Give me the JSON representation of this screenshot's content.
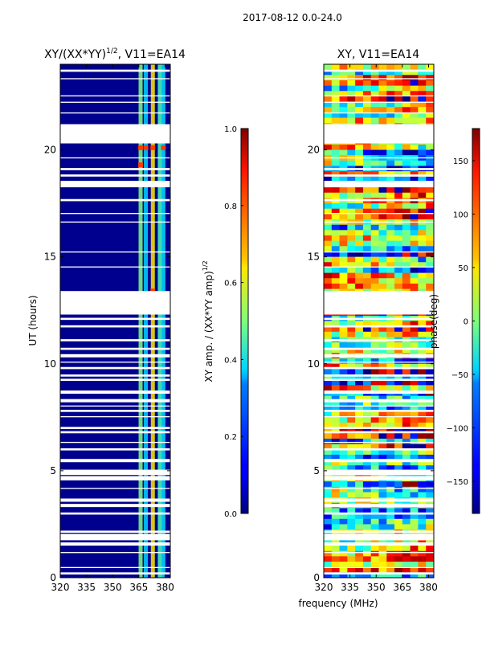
{
  "chart_data": {
    "suptitle": "2017-08-12 0.0-24.0",
    "xlabel": "frequency (MHz)",
    "panels": [
      {
        "type": "heatmap",
        "title_base": "XY/(XX*YY)",
        "title_sup": "1/2",
        "title_suffix": ", V11=EA14",
        "ylabel": "UT (hours)",
        "xlim": [
          320,
          383
        ],
        "ylim": [
          0,
          24
        ],
        "xticks": [
          320,
          335,
          350,
          365,
          380
        ],
        "yticks": [
          0,
          5,
          10,
          15,
          20
        ],
        "colorbar": {
          "label_base": "XY amp. / (XX*YY amp)",
          "label_sup": "1/2",
          "range": [
            0.0,
            1.0
          ],
          "ticks": [
            0.0,
            0.2,
            0.4,
            0.6,
            0.8,
            1.0
          ],
          "tick_labels": [
            "0.0",
            "0.2",
            "0.4",
            "0.6",
            "0.8",
            "1.0"
          ]
        }
      },
      {
        "type": "heatmap",
        "title": "XY, V11=EA14",
        "xlim": [
          320,
          383
        ],
        "ylim": [
          0,
          24
        ],
        "xticks": [
          320,
          335,
          350,
          365,
          380
        ],
        "yticks": [
          0,
          5,
          10,
          15,
          20
        ],
        "colorbar": {
          "label": "phase(deg)",
          "range": [
            -180,
            180
          ],
          "ticks": [
            -150,
            -100,
            -50,
            0,
            50,
            100,
            150
          ],
          "tick_labels": [
            "−150",
            "−100",
            "−50",
            "0",
            "50",
            "100",
            "150"
          ]
        }
      }
    ],
    "data_gaps_ut": [
      [
        0.15,
        0.25
      ],
      [
        0.45,
        0.5
      ],
      [
        1.15,
        1.2
      ],
      [
        1.5,
        1.65
      ],
      [
        1.75,
        2.05
      ],
      [
        2.1,
        2.2
      ],
      [
        2.95,
        3.05
      ],
      [
        3.3,
        3.45
      ],
      [
        3.55,
        3.7
      ],
      [
        4.15,
        4.2
      ],
      [
        4.55,
        4.75
      ],
      [
        4.8,
        5.05
      ],
      [
        5.4,
        5.55
      ],
      [
        5.95,
        6.05
      ],
      [
        6.3,
        6.35
      ],
      [
        6.75,
        6.85
      ],
      [
        6.95,
        7.05
      ],
      [
        7.5,
        7.55
      ],
      [
        7.75,
        7.85
      ],
      [
        8.0,
        8.05
      ],
      [
        8.2,
        8.35
      ],
      [
        8.6,
        8.75
      ],
      [
        9.2,
        9.3
      ],
      [
        9.4,
        9.5
      ],
      [
        9.75,
        9.85
      ],
      [
        10.05,
        10.1
      ],
      [
        10.3,
        10.45
      ],
      [
        10.65,
        10.75
      ],
      [
        11.05,
        11.15
      ],
      [
        11.7,
        11.8
      ],
      [
        12.05,
        12.15
      ],
      [
        12.3,
        13.4
      ],
      [
        14.5,
        14.55
      ],
      [
        15.2,
        15.25
      ],
      [
        16.6,
        16.65
      ],
      [
        17.0,
        17.05
      ],
      [
        17.6,
        17.7
      ],
      [
        18.25,
        18.55
      ],
      [
        18.75,
        18.85
      ],
      [
        19.05,
        19.15
      ],
      [
        19.6,
        19.65
      ],
      [
        20.3,
        21.2
      ],
      [
        21.7,
        21.75
      ],
      [
        22.2,
        22.25
      ],
      [
        22.5,
        22.55
      ],
      [
        23.3,
        23.35
      ],
      [
        23.65,
        23.75
      ]
    ],
    "bright_channels_mhz": [
      366,
      369,
      373,
      377,
      379
    ]
  }
}
